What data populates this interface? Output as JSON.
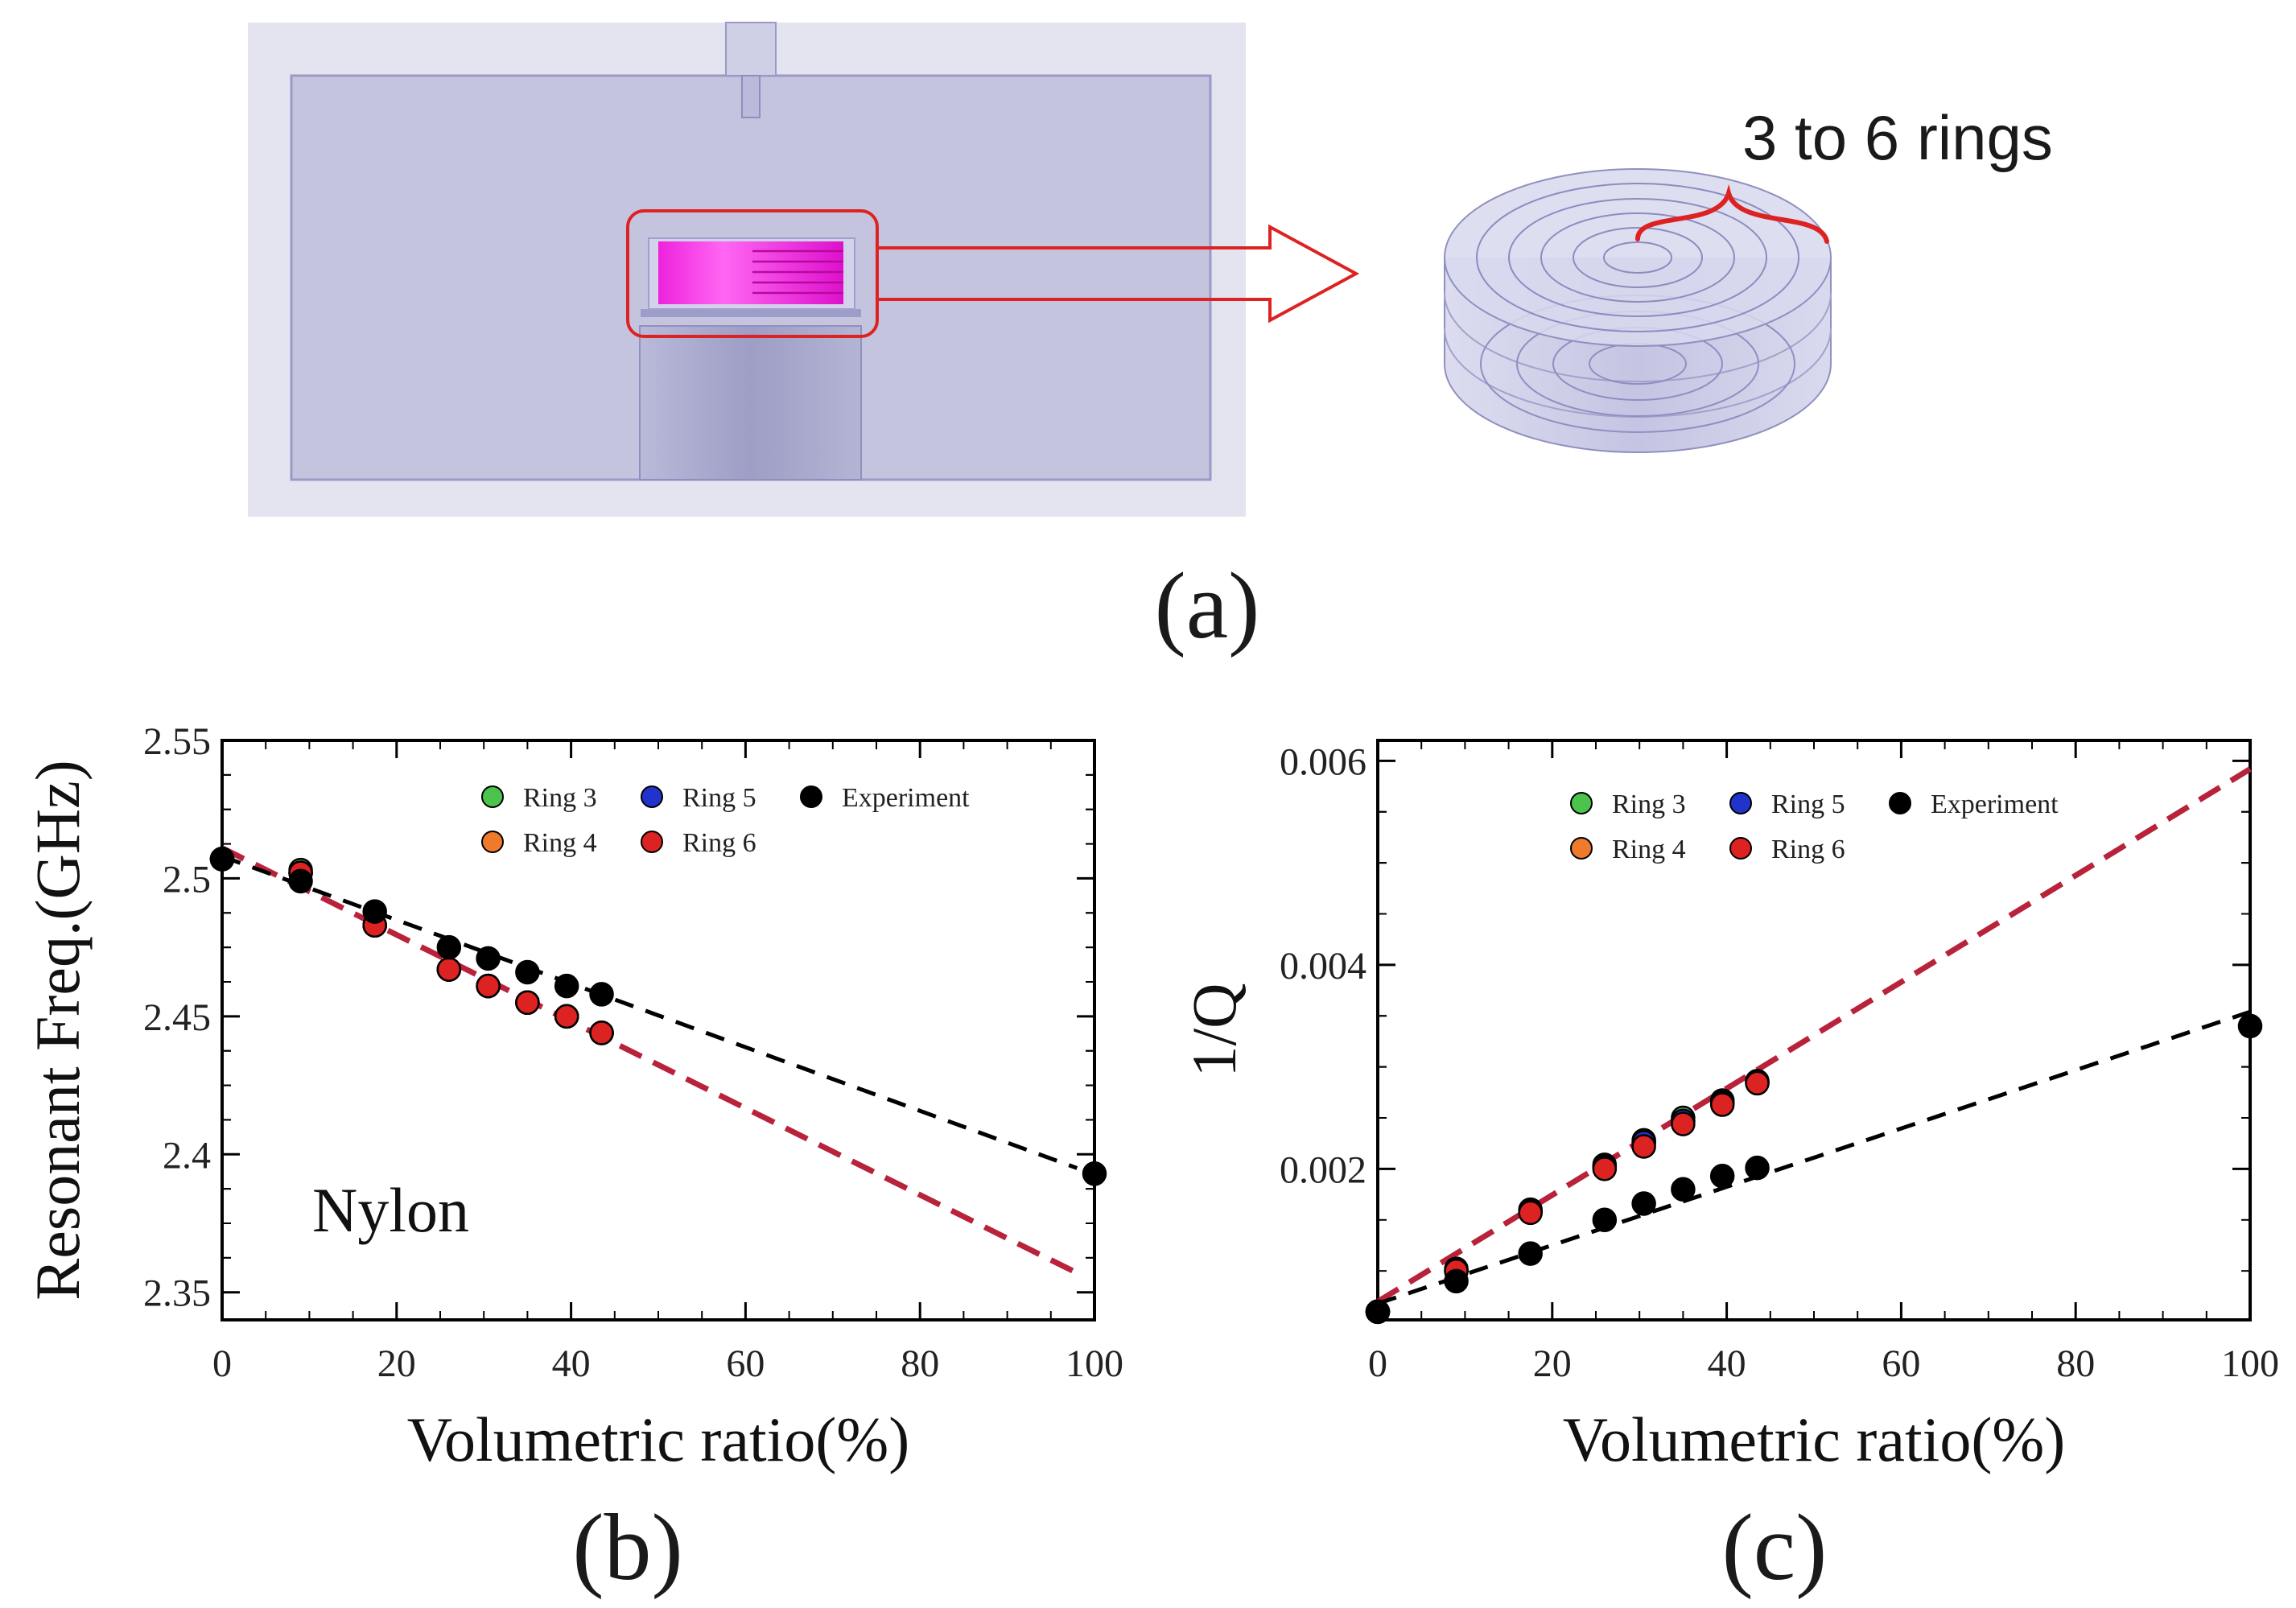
{
  "panel_a": {
    "annotation": "3 to 6 rings",
    "label": "(a)"
  },
  "colors": {
    "ring3": "#4cc34c",
    "ring4": "#f07a2c",
    "ring5": "#2233cc",
    "ring6": "#dd2222",
    "experiment": "#000000",
    "fit_sim": "#b8223a",
    "fit_exp": "#000000",
    "sample_magenta": "#ee22dd",
    "cavity": "#c2c2de",
    "highlight": "#dd2222"
  },
  "chart_data": [
    {
      "type": "scatter",
      "panel_label": "(b)",
      "annotation": "Nylon",
      "xlabel": "Volumetric ratio(%)",
      "ylabel": "Resonant Freq.(GHz)",
      "xlim": [
        0,
        100
      ],
      "ylim": [
        2.34,
        2.55
      ],
      "xticks": [
        0,
        20,
        40,
        60,
        80,
        100
      ],
      "yticks": [
        2.35,
        2.4,
        2.45,
        2.5,
        2.55
      ],
      "yticklabels": [
        "2.35",
        "2.4",
        "2.45",
        "2.5",
        "2.55"
      ],
      "legend": {
        "placement": "top-right",
        "columns": [
          [
            "Ring 3",
            "Ring 4"
          ],
          [
            "Ring 5",
            "Ring 6"
          ],
          [
            "Experiment"
          ]
        ]
      },
      "series": [
        {
          "name": "Ring 3",
          "color": "#4cc34c",
          "x": [
            0,
            9,
            17.5,
            26,
            30.5,
            35,
            39.5,
            43.5
          ],
          "y": [
            2.507,
            2.503,
            2.483,
            2.467,
            2.461,
            2.455,
            2.45,
            2.444
          ]
        },
        {
          "name": "Ring 4",
          "color": "#f07a2c",
          "x": [
            0,
            9,
            17.5,
            26,
            30.5,
            35,
            39.5,
            43.5
          ],
          "y": [
            2.507,
            2.502,
            2.483,
            2.467,
            2.461,
            2.455,
            2.45,
            2.444
          ]
        },
        {
          "name": "Ring 5",
          "color": "#2233cc",
          "x": [
            0,
            9,
            17.5,
            26,
            30.5,
            35,
            39.5,
            43.5
          ],
          "y": [
            2.507,
            2.502,
            2.483,
            2.467,
            2.461,
            2.455,
            2.45,
            2.444
          ]
        },
        {
          "name": "Ring 6",
          "color": "#dd2222",
          "x": [
            0,
            9,
            17.5,
            26,
            30.5,
            35,
            39.5,
            43.5
          ],
          "y": [
            2.507,
            2.502,
            2.483,
            2.467,
            2.461,
            2.455,
            2.45,
            2.444
          ]
        },
        {
          "name": "Experiment",
          "color": "#000000",
          "x": [
            0,
            9,
            17.5,
            26,
            30.5,
            35,
            39.5,
            43.5,
            100
          ],
          "y": [
            2.507,
            2.499,
            2.488,
            2.475,
            2.471,
            2.466,
            2.461,
            2.458,
            2.393
          ]
        }
      ],
      "fits": [
        {
          "of": "Simulation",
          "color": "#b8223a",
          "x": [
            0,
            98
          ],
          "y": [
            2.511,
            2.357
          ]
        },
        {
          "of": "Experiment",
          "color": "#000000",
          "x": [
            0,
            98
          ],
          "y": [
            2.508,
            2.395
          ]
        }
      ]
    },
    {
      "type": "scatter",
      "panel_label": "(c)",
      "xlabel": "Volumetric ratio(%)",
      "ylabel": "1/Q",
      "xlim": [
        0,
        100
      ],
      "ylim": [
        0.00052,
        0.0062
      ],
      "xticks": [
        0,
        20,
        40,
        60,
        80,
        100
      ],
      "yticks": [
        0.002,
        0.004,
        0.006
      ],
      "yticklabels": [
        "0.002",
        "0.004",
        "0.006"
      ],
      "legend": {
        "placement": "top-right",
        "columns": [
          [
            "Ring 3",
            "Ring 4"
          ],
          [
            "Ring 5",
            "Ring 6"
          ],
          [
            "Experiment"
          ]
        ]
      },
      "series": [
        {
          "name": "Ring 3",
          "color": "#4cc34c",
          "x": [
            0,
            9,
            17.5,
            26,
            30.5,
            35,
            39.5,
            43.5
          ],
          "y": [
            0.0006,
            0.00102,
            0.0016,
            0.00204,
            0.00228,
            0.0025,
            0.00267,
            0.00286
          ]
        },
        {
          "name": "Ring 4",
          "color": "#f07a2c",
          "x": [
            0,
            9,
            17.5,
            26,
            30.5,
            35,
            39.5,
            43.5
          ],
          "y": [
            0.0006,
            0.001,
            0.00158,
            0.00202,
            0.00226,
            0.00247,
            0.00265,
            0.00285
          ]
        },
        {
          "name": "Ring 5",
          "color": "#2233cc",
          "x": [
            0,
            9,
            17.5,
            26,
            30.5,
            35,
            39.5,
            43.5
          ],
          "y": [
            0.0006,
            0.001,
            0.00158,
            0.00202,
            0.00226,
            0.00247,
            0.00265,
            0.00285
          ]
        },
        {
          "name": "Ring 6",
          "color": "#dd2222",
          "x": [
            0,
            9,
            17.5,
            26,
            30.5,
            35,
            39.5,
            43.5
          ],
          "y": [
            0.0006,
            0.001,
            0.00157,
            0.002,
            0.00222,
            0.00244,
            0.00263,
            0.00284
          ]
        },
        {
          "name": "Experiment",
          "color": "#000000",
          "x": [
            0,
            9,
            17.5,
            26,
            30.5,
            35,
            39.5,
            43.5,
            100
          ],
          "y": [
            0.0006,
            0.0009,
            0.00117,
            0.0015,
            0.00166,
            0.0018,
            0.00193,
            0.00201,
            0.0034
          ]
        }
      ],
      "fits": [
        {
          "of": "Simulation",
          "color": "#b8223a",
          "x": [
            0,
            100
          ],
          "y": [
            0.0007,
            0.00592
          ]
        },
        {
          "of": "Experiment",
          "color": "#000000",
          "x": [
            0,
            100
          ],
          "y": [
            0.00068,
            0.00354
          ]
        }
      ]
    }
  ]
}
